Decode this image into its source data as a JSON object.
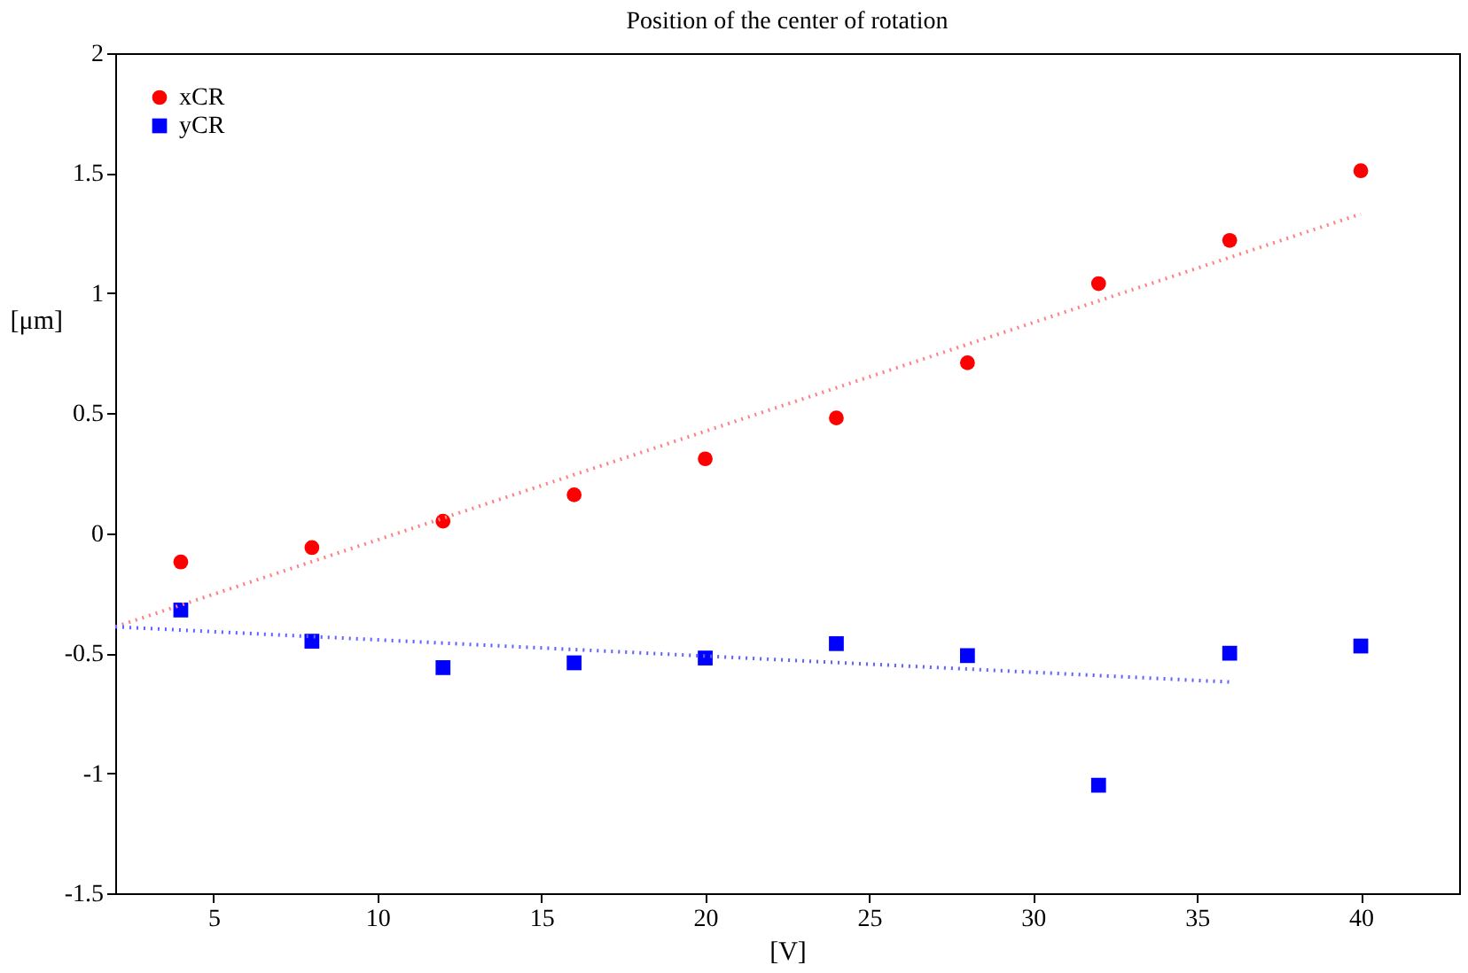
{
  "chart_data": {
    "type": "scatter",
    "title": "Position of the center of rotation",
    "xlabel": "[V]",
    "ylabel": "[μm]",
    "xlim": [
      2,
      43
    ],
    "xticks": [
      5,
      10,
      15,
      20,
      25,
      30,
      35,
      40
    ],
    "ylim": [
      -1.5,
      2
    ],
    "yticks": [
      -1.5,
      -1,
      -0.5,
      0,
      0.5,
      1,
      1.5,
      2
    ],
    "grid": false,
    "legend": "top left",
    "series": [
      {
        "name": "xCR",
        "color": "#ff0000",
        "marker": "circle",
        "x": [
          4,
          8,
          12,
          16,
          20,
          24,
          28,
          32,
          36,
          40
        ],
        "values": [
          -0.12,
          -0.06,
          0.05,
          0.16,
          0.31,
          0.48,
          0.71,
          1.04,
          1.22,
          1.51
        ]
      },
      {
        "name": "yCR",
        "color": "#0000ff",
        "marker": "square",
        "x": [
          4,
          8,
          12,
          16,
          20,
          24,
          28,
          32,
          36,
          40
        ],
        "values": [
          -0.32,
          -0.45,
          -0.56,
          -0.54,
          -0.52,
          -0.46,
          -0.51,
          -1.05,
          -0.5,
          -0.47
        ]
      },
      {
        "type": "line",
        "color": "#ff8080",
        "line_style": "dotted",
        "marker": "none",
        "x": [
          2,
          40
        ],
        "values": [
          -0.39,
          1.33
        ]
      },
      {
        "type": "line",
        "color": "#6060ff",
        "line_style": "dotted",
        "marker": "none",
        "x": [
          2,
          36
        ],
        "values": [
          -0.39,
          -0.62
        ]
      }
    ]
  }
}
